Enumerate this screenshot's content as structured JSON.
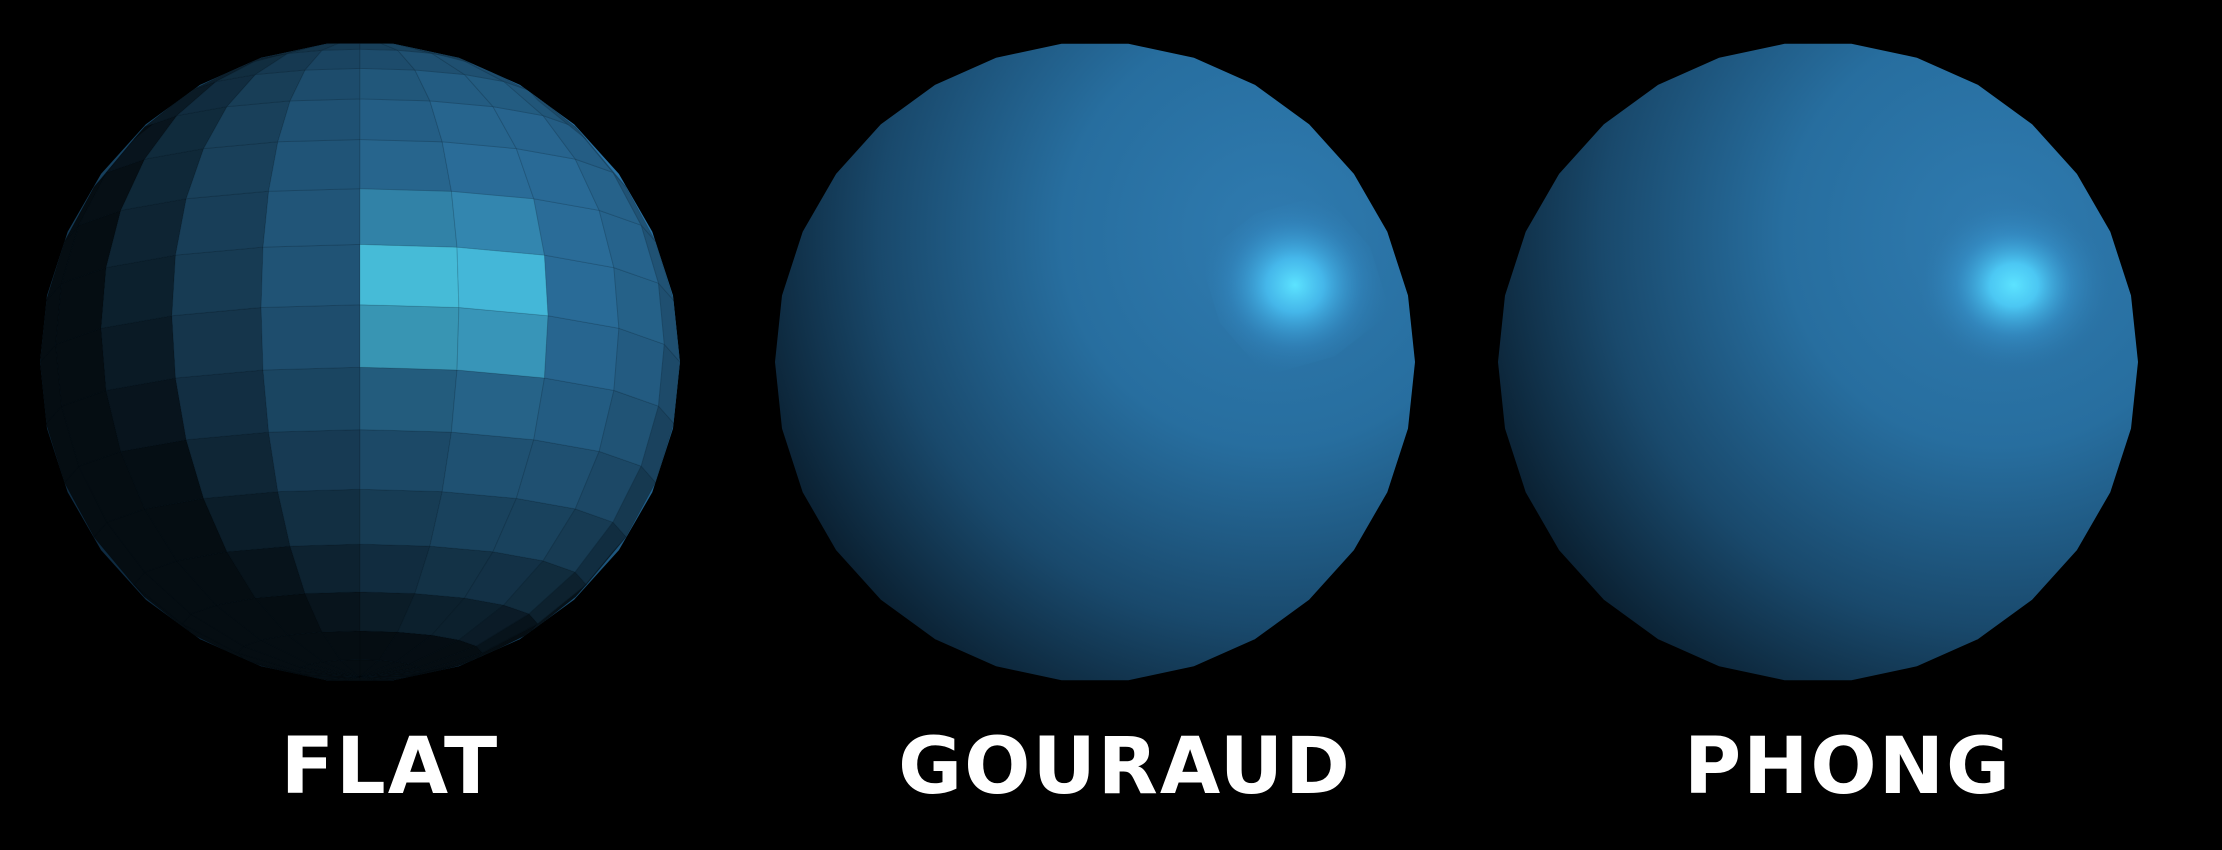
{
  "panels": [
    {
      "label": "FLAT",
      "shading": "flat"
    },
    {
      "label": "GOURAUD",
      "shading": "gouraud"
    },
    {
      "label": "PHONG",
      "shading": "phong"
    }
  ],
  "colors": {
    "background": "#000000",
    "sphere_base": "#2a6d9a",
    "sphere_dark": "#05121d",
    "highlight": "#5ce3ff",
    "label": "#ffffff"
  }
}
